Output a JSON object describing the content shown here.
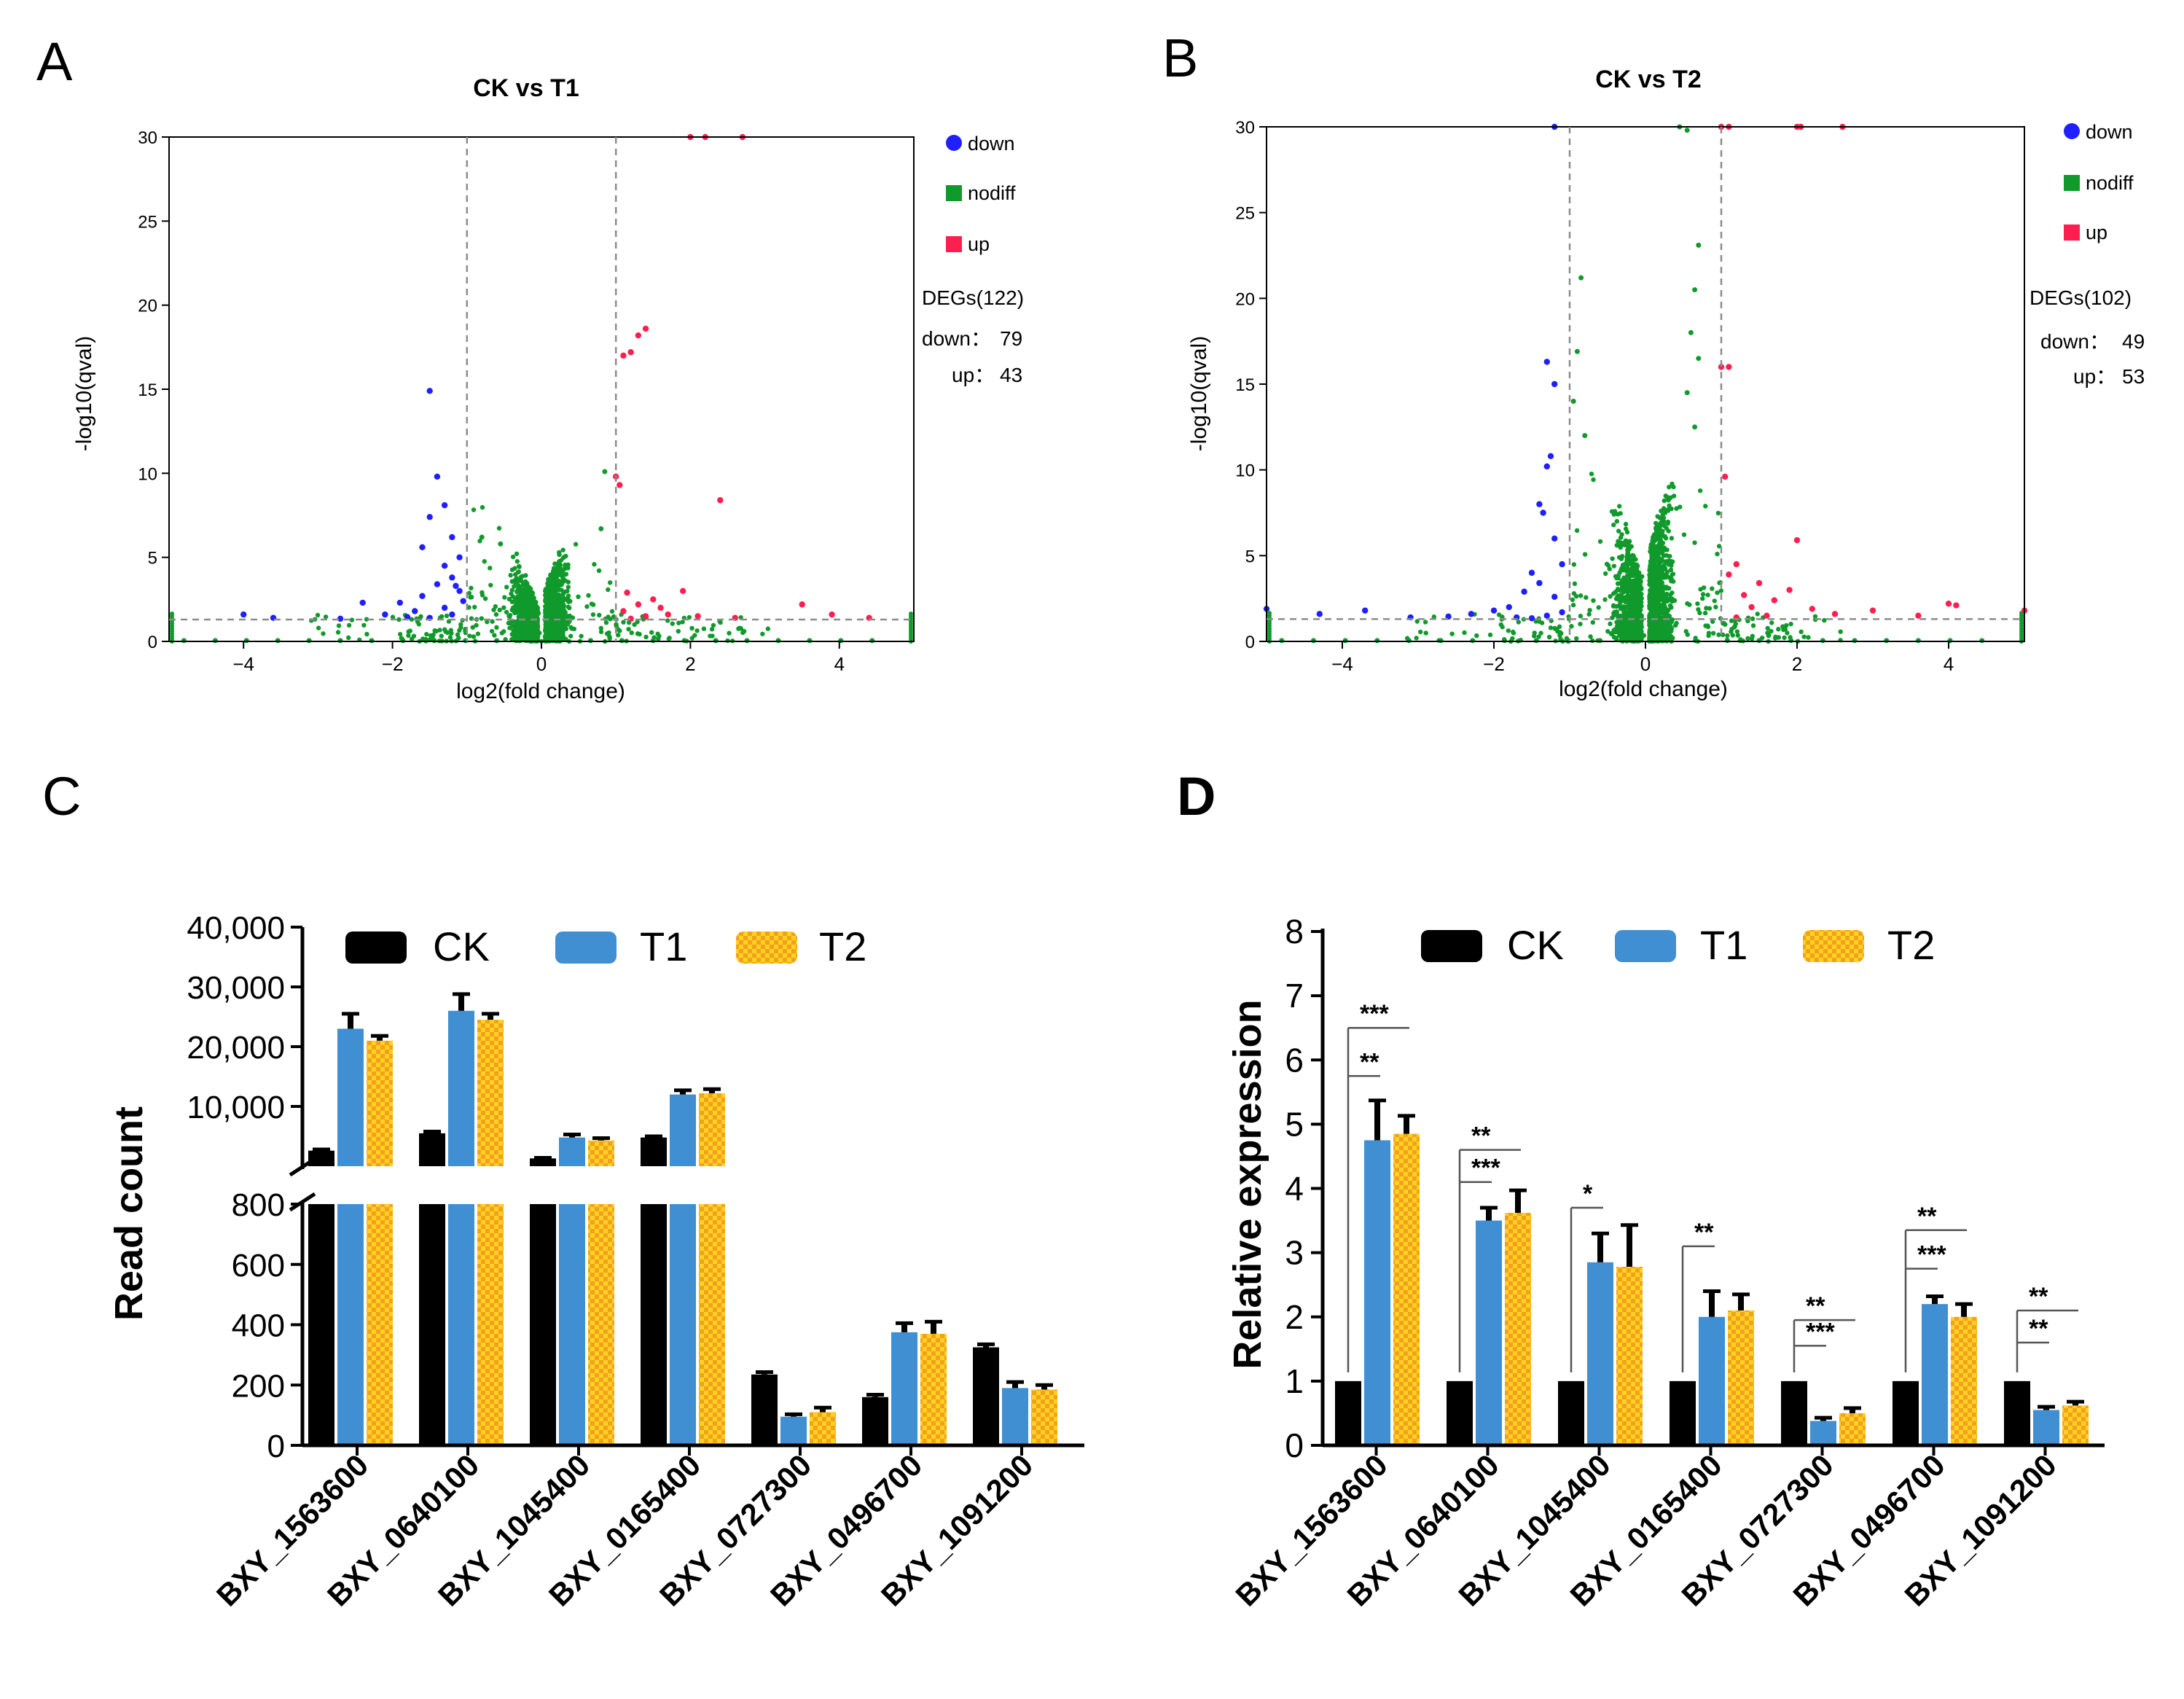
{
  "colors": {
    "down": "#1f1fff",
    "nodiff": "#119a2c",
    "up": "#ff1f4f",
    "ck": "#000000",
    "t1": "#3f8fd2",
    "t2": "#ffd21e",
    "t2_check": "#f3a020",
    "axis": "#000000",
    "threshold": "#8c8c8c"
  },
  "panel_letters": [
    "A",
    "B",
    "C",
    "D"
  ],
  "chart_data": [
    {
      "type": "scatter",
      "panel": "A",
      "title": "CK vs T1",
      "xlabel": "log2(fold change)",
      "ylabel": "-log10(qval)",
      "xlim": [
        -5,
        5
      ],
      "ylim": [
        0,
        30
      ],
      "xticks": [
        -4,
        -2,
        0,
        2,
        4
      ],
      "yticks": [
        0,
        5,
        10,
        15,
        20,
        25,
        30
      ],
      "thresholds": {
        "x": [
          -1,
          1
        ],
        "y": 1.3
      },
      "legend": {
        "placement": "right",
        "entries": [
          "down",
          "nodiff",
          "up"
        ]
      },
      "deg_summary": {
        "title": "DEGs(122)",
        "down_label": "down：",
        "down": "79",
        "up_label": "up：",
        "up": "43"
      },
      "series": [
        {
          "name": "down",
          "points": [
            [
              -1.5,
              14.9
            ],
            [
              -1.4,
              9.8
            ],
            [
              -1.3,
              8.1
            ],
            [
              -1.5,
              7.4
            ],
            [
              -1.2,
              6.2
            ],
            [
              -1.6,
              5.6
            ],
            [
              -1.1,
              5.0
            ],
            [
              -1.3,
              4.5
            ],
            [
              -1.2,
              3.8
            ],
            [
              -1.4,
              3.4
            ],
            [
              -1.1,
              3.0
            ],
            [
              -1.6,
              2.7
            ],
            [
              -1.9,
              2.3
            ],
            [
              -1.3,
              2.0
            ],
            [
              -1.7,
              1.8
            ],
            [
              -2.4,
              2.3
            ],
            [
              -4.0,
              1.6
            ],
            [
              -3.6,
              1.4
            ],
            [
              -2.1,
              1.6
            ],
            [
              -1.5,
              1.4
            ],
            [
              -1.2,
              1.6
            ],
            [
              -1.8,
              1.45
            ],
            [
              -1.05,
              2.4
            ],
            [
              -1.15,
              3.3
            ],
            [
              -2.7,
              1.35
            ]
          ]
        },
        {
          "name": "up",
          "points": [
            [
              1.4,
              18.6
            ],
            [
              1.3,
              18.2
            ],
            [
              1.2,
              17.2
            ],
            [
              1.1,
              17.0
            ],
            [
              1.0,
              9.8
            ],
            [
              1.05,
              9.3
            ],
            [
              2.4,
              8.4
            ],
            [
              1.15,
              2.9
            ],
            [
              1.5,
              2.5
            ],
            [
              1.9,
              3.0
            ],
            [
              1.3,
              2.2
            ],
            [
              1.1,
              1.8
            ],
            [
              1.7,
              1.6
            ],
            [
              2.1,
              1.5
            ],
            [
              2.6,
              1.4
            ],
            [
              3.5,
              2.2
            ],
            [
              3.9,
              1.6
            ],
            [
              4.4,
              1.4
            ],
            [
              1.4,
              1.5
            ],
            [
              1.2,
              1.35
            ],
            [
              2.0,
              30
            ],
            [
              2.2,
              30
            ],
            [
              2.7,
              30
            ],
            [
              1.6,
              2.0
            ]
          ]
        }
      ]
    },
    {
      "type": "scatter",
      "panel": "B",
      "title": "CK vs T2",
      "xlabel": "log2(fold change)",
      "ylabel": "-log10(qval)",
      "xlim": [
        -5,
        5
      ],
      "ylim": [
        0,
        30
      ],
      "xticks": [
        -4,
        -2,
        0,
        2,
        4
      ],
      "yticks": [
        0,
        5,
        10,
        15,
        20,
        25,
        30
      ],
      "thresholds": {
        "x": [
          -1,
          1
        ],
        "y": 1.3
      },
      "legend": {
        "placement": "right",
        "entries": [
          "down",
          "nodiff",
          "up"
        ]
      },
      "deg_summary": {
        "title": "DEGs(102)",
        "down_label": "down：",
        "down": "49",
        "up_label": "up：",
        "up": "53"
      },
      "series": [
        {
          "name": "down",
          "points": [
            [
              -1.2,
              30
            ],
            [
              -1.3,
              16.3
            ],
            [
              -1.2,
              15.0
            ],
            [
              -1.25,
              10.8
            ],
            [
              -1.3,
              10.2
            ],
            [
              -1.4,
              8.0
            ],
            [
              -1.35,
              7.5
            ],
            [
              -1.2,
              6.0
            ],
            [
              -1.1,
              4.5
            ],
            [
              -1.5,
              4.0
            ],
            [
              -1.4,
              3.4
            ],
            [
              -1.6,
              2.9
            ],
            [
              -1.2,
              2.6
            ],
            [
              -1.8,
              2.0
            ],
            [
              -2.0,
              1.8
            ],
            [
              -1.1,
              1.7
            ],
            [
              -2.3,
              1.6
            ],
            [
              -3.7,
              1.8
            ],
            [
              -4.3,
              1.6
            ],
            [
              -5.0,
              1.9
            ],
            [
              -1.3,
              1.5
            ],
            [
              -1.7,
              1.4
            ],
            [
              -2.6,
              1.45
            ],
            [
              -3.1,
              1.4
            ],
            [
              -1.5,
              1.35
            ]
          ]
        },
        {
          "name": "up",
          "points": [
            [
              1.0,
              16.0
            ],
            [
              1.1,
              16.0
            ],
            [
              1.05,
              9.6
            ],
            [
              2.0,
              5.9
            ],
            [
              1.2,
              4.5
            ],
            [
              1.1,
              3.9
            ],
            [
              1.5,
              3.4
            ],
            [
              1.9,
              3.0
            ],
            [
              1.3,
              2.7
            ],
            [
              1.7,
              2.4
            ],
            [
              1.4,
              2.0
            ],
            [
              2.2,
              1.9
            ],
            [
              2.5,
              1.6
            ],
            [
              3.0,
              1.8
            ],
            [
              3.6,
              1.5
            ],
            [
              4.0,
              2.2
            ],
            [
              4.1,
              2.1
            ],
            [
              5.0,
              1.8
            ],
            [
              1.6,
              1.5
            ],
            [
              1.2,
              1.4
            ],
            [
              1.0,
              30
            ],
            [
              1.1,
              30
            ],
            [
              2.0,
              30
            ],
            [
              2.05,
              30
            ],
            [
              2.6,
              30
            ]
          ]
        }
      ]
    },
    {
      "type": "bar",
      "panel": "C",
      "ylabel": "Read count",
      "categories": [
        "BXY_1563600",
        "BXY_0640100",
        "BXY_1045400",
        "BXY_0165400",
        "BXY_0727300",
        "BXY_0496700",
        "BXY_1091200"
      ],
      "series": [
        {
          "name": "CK",
          "values": [
            2600,
            5500,
            1300,
            4800,
            235,
            160,
            325
          ],
          "errors": [
            200,
            300,
            100,
            200,
            8,
            8,
            10
          ]
        },
        {
          "name": "T1",
          "values": [
            23000,
            26000,
            4800,
            12000,
            95,
            375,
            190
          ],
          "errors": [
            2500,
            2800,
            500,
            700,
            8,
            30,
            20
          ]
        },
        {
          "name": "T2",
          "values": [
            21000,
            24500,
            4300,
            12200,
            110,
            370,
            185
          ],
          "errors": [
            800,
            1000,
            400,
            700,
            15,
            40,
            15
          ]
        }
      ],
      "axis_break": {
        "lower_ylim": [
          0,
          800
        ],
        "upper_ylim": [
          0,
          40000
        ]
      },
      "yticks_lower": [
        "0",
        "200",
        "400",
        "600",
        "800"
      ],
      "yticks_upper": [
        "10,000",
        "20,000",
        "30,000",
        "40,000"
      ],
      "legend": {
        "placement": "top",
        "entries": [
          "CK",
          "T1",
          "T2"
        ]
      }
    },
    {
      "type": "bar",
      "panel": "D",
      "ylabel": "Relative expression",
      "categories": [
        "BXY_1563600",
        "BXY_0640100",
        "BXY_1045400",
        "BXY_0165400",
        "BXY_0727300",
        "BXY_0496700",
        "BXY_1091200"
      ],
      "series": [
        {
          "name": "CK",
          "values": [
            1,
            1,
            1,
            1,
            1,
            1,
            1
          ],
          "errors": [
            0,
            0,
            0,
            0,
            0,
            0,
            0
          ]
        },
        {
          "name": "T1",
          "values": [
            4.75,
            3.5,
            2.85,
            2.0,
            0.38,
            2.2,
            0.55
          ],
          "errors": [
            0.62,
            0.2,
            0.45,
            0.4,
            0.05,
            0.12,
            0.05
          ]
        },
        {
          "name": "T2",
          "values": [
            4.85,
            3.62,
            2.78,
            2.1,
            0.5,
            2.0,
            0.62
          ],
          "errors": [
            0.28,
            0.35,
            0.65,
            0.25,
            0.08,
            0.2,
            0.06
          ]
        }
      ],
      "ylim": [
        0,
        8
      ],
      "yticks": [
        "0",
        "1",
        "2",
        "3",
        "4",
        "5",
        "6",
        "7",
        "8"
      ],
      "legend": {
        "placement": "top",
        "entries": [
          "CK",
          "T1",
          "T2"
        ]
      },
      "significance": [
        {
          "group": 0,
          "lines": [
            {
              "label": "**",
              "y": 5.75,
              "to": "T1"
            },
            {
              "label": "***",
              "y": 6.5,
              "to": "T2"
            }
          ]
        },
        {
          "group": 1,
          "lines": [
            {
              "label": "***",
              "y": 4.1,
              "to": "T1"
            },
            {
              "label": "**",
              "y": 4.6,
              "to": "T2"
            }
          ]
        },
        {
          "group": 2,
          "lines": [
            {
              "label": "*",
              "y": 3.7,
              "to": "T1"
            }
          ]
        },
        {
          "group": 3,
          "lines": [
            {
              "label": "**",
              "y": 3.1,
              "to": "T1"
            }
          ]
        },
        {
          "group": 4,
          "lines": [
            {
              "label": "***",
              "y": 1.55,
              "to": "T1"
            },
            {
              "label": "**",
              "y": 1.95,
              "to": "T2"
            }
          ]
        },
        {
          "group": 5,
          "lines": [
            {
              "label": "***",
              "y": 2.75,
              "to": "T1"
            },
            {
              "label": "**",
              "y": 3.35,
              "to": "T2"
            }
          ]
        },
        {
          "group": 6,
          "lines": [
            {
              "label": "**",
              "y": 1.6,
              "to": "T1"
            },
            {
              "label": "**",
              "y": 2.1,
              "to": "T2"
            }
          ]
        }
      ]
    }
  ]
}
